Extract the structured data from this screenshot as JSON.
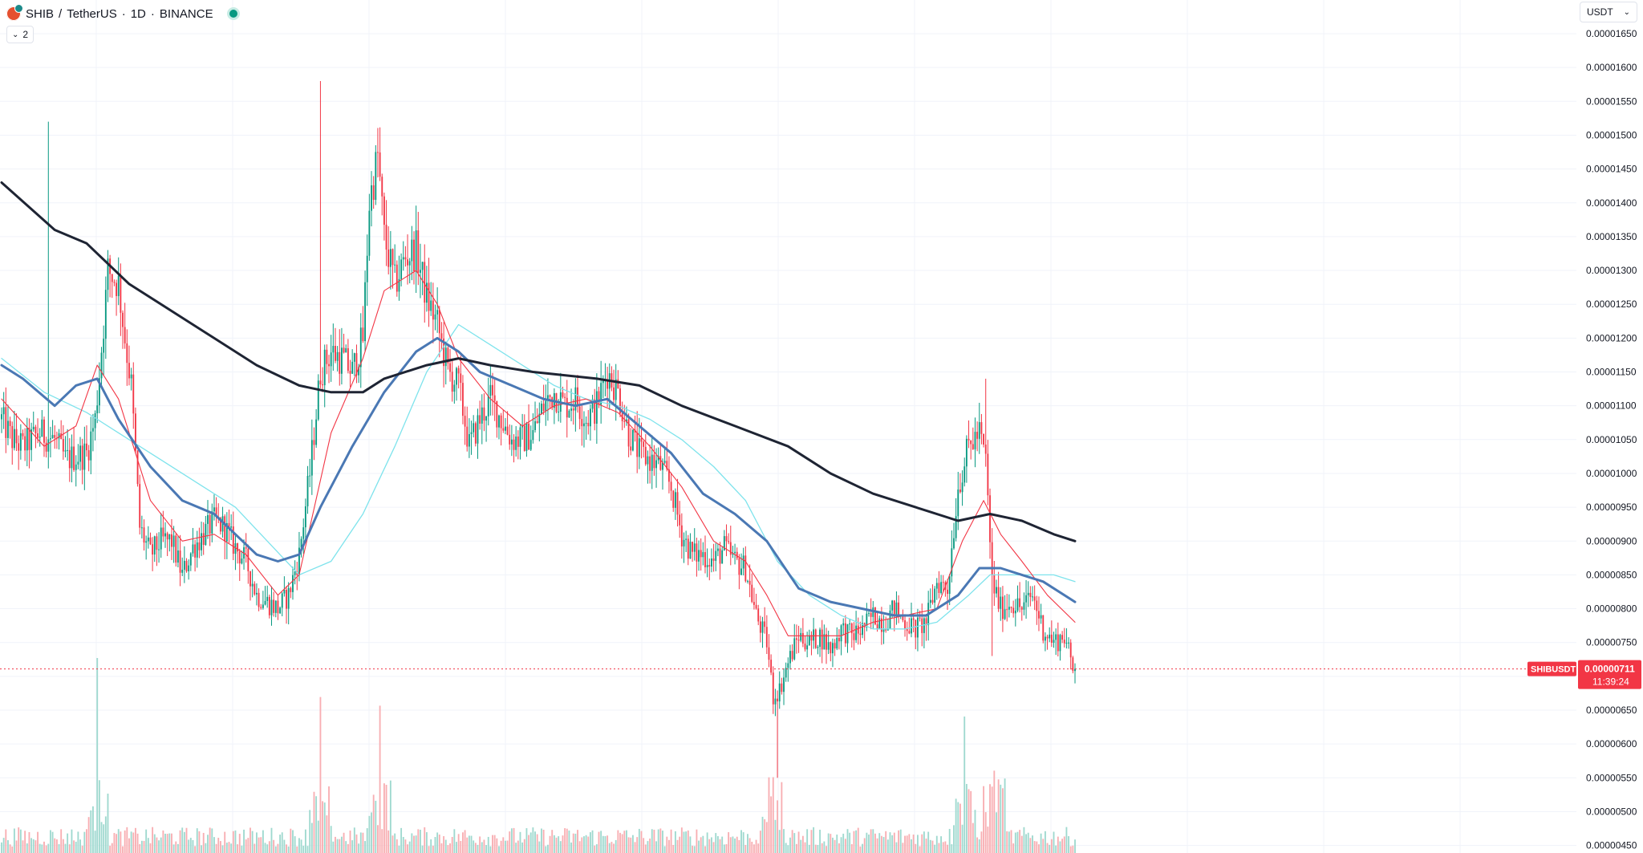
{
  "header": {
    "symbol": "SHIB",
    "separator": "/",
    "quote": "TetherUS",
    "interval_sep": "·",
    "interval": "1D",
    "exchange": "BINANCE",
    "indicators_count": "2"
  },
  "currency_selector": {
    "label": "USDT"
  },
  "price_tag": {
    "symbol": "SHIBUSDT",
    "price": "0.00000711",
    "countdown": "11:39:24",
    "color": "#f23645"
  },
  "colors": {
    "up": "#089981",
    "down": "#f23645",
    "up_volume": "#9fd9cf",
    "down_volume": "#f8aeb2",
    "ma_fast": "#f23645",
    "ma_slow_light": "#7ee3ec",
    "ma_mid": "#4a78b4",
    "ma_long": "#1e2433",
    "grid": "#f0f3fa"
  },
  "chart_data": {
    "type": "candlestick",
    "title": "SHIB / TetherUS · 1D · BINANCE",
    "price_axis_labels": [
      "0.00001650",
      "0.00001600",
      "0.00001550",
      "0.00001500",
      "0.00001450",
      "0.00001400",
      "0.00001350",
      "0.00001300",
      "0.00001250",
      "0.00001200",
      "0.00001150",
      "0.00001100",
      "0.00001050",
      "0.00001000",
      "0.00000950",
      "0.00000900",
      "0.00000850",
      "0.00000800",
      "0.00000750",
      "0.00000700",
      "0.00000650",
      "0.00000600",
      "0.00000550",
      "0.00000500",
      "0.00000450"
    ],
    "ylim": [
      4.5e-06,
      1.668e-05
    ],
    "grid": true,
    "last_price": 7.11e-06,
    "close_path": [
      [
        0,
        1.08e-05
      ],
      [
        5,
        1.05e-05
      ],
      [
        10,
        1.04e-05
      ],
      [
        18,
        1.06e-05
      ],
      [
        25,
        1.05e-05
      ],
      [
        30,
        1.02e-05
      ],
      [
        40,
        1.03e-05
      ],
      [
        44,
        1.08e-05
      ],
      [
        48,
        1.22e-05
      ],
      [
        50,
        1.3e-05
      ],
      [
        55,
        1.28e-05
      ],
      [
        58,
        1.2e-05
      ],
      [
        61,
        1.13e-05
      ],
      [
        65,
        9.2e-06
      ],
      [
        70,
        8.8e-06
      ],
      [
        75,
        9e-06
      ],
      [
        80,
        9e-06
      ],
      [
        85,
        8.5e-06
      ],
      [
        90,
        8.9e-06
      ],
      [
        95,
        9.1e-06
      ],
      [
        100,
        9.3e-06
      ],
      [
        105,
        9.2e-06
      ],
      [
        110,
        8.9e-06
      ],
      [
        115,
        8.7e-06
      ],
      [
        120,
        8.2e-06
      ],
      [
        125,
        8.1e-06
      ],
      [
        130,
        8e-06
      ],
      [
        135,
        8.2e-06
      ],
      [
        140,
        8.8e-06
      ],
      [
        145,
        1e-05
      ],
      [
        150,
        1.15e-05
      ],
      [
        155,
        1.18e-05
      ],
      [
        160,
        1.17e-05
      ],
      [
        165,
        1.15e-05
      ],
      [
        170,
        1.2e-05
      ],
      [
        173,
        1.4e-05
      ],
      [
        177,
        1.47e-05
      ],
      [
        180,
        1.35e-05
      ],
      [
        185,
        1.28e-05
      ],
      [
        190,
        1.32e-05
      ],
      [
        195,
        1.33e-05
      ],
      [
        200,
        1.26e-05
      ],
      [
        205,
        1.22e-05
      ],
      [
        210,
        1.15e-05
      ],
      [
        215,
        1.13e-05
      ],
      [
        220,
        1.04e-05
      ],
      [
        225,
        1.08e-05
      ],
      [
        230,
        1.11e-05
      ],
      [
        235,
        1.08e-05
      ],
      [
        240,
        1.05e-05
      ],
      [
        245,
        1.05e-05
      ],
      [
        250,
        1.06e-05
      ],
      [
        255,
        1.1e-05
      ],
      [
        260,
        1.12e-05
      ],
      [
        265,
        1.1e-05
      ],
      [
        270,
        1.11e-05
      ],
      [
        275,
        1.08e-05
      ],
      [
        280,
        1.1e-05
      ],
      [
        285,
        1.15e-05
      ],
      [
        290,
        1.12e-05
      ],
      [
        295,
        1.06e-05
      ],
      [
        300,
        1.03e-05
      ],
      [
        305,
        1.02e-05
      ],
      [
        310,
        1.01e-05
      ],
      [
        315,
        9.8e-06
      ],
      [
        320,
        9.1e-06
      ],
      [
        325,
        8.8e-06
      ],
      [
        330,
        8.8e-06
      ],
      [
        335,
        8.7e-06
      ],
      [
        340,
        8.9e-06
      ],
      [
        345,
        8.7e-06
      ],
      [
        350,
        8.6e-06
      ],
      [
        355,
        7.9e-06
      ],
      [
        360,
        7.5e-06
      ],
      [
        363,
        6.7e-06
      ],
      [
        366,
        6.8e-06
      ],
      [
        370,
        7.2e-06
      ],
      [
        375,
        7.6e-06
      ],
      [
        380,
        7.5e-06
      ],
      [
        385,
        7.6e-06
      ],
      [
        390,
        7.4e-06
      ],
      [
        395,
        7.7e-06
      ],
      [
        400,
        7.6e-06
      ],
      [
        405,
        7.7e-06
      ],
      [
        410,
        7.9e-06
      ],
      [
        415,
        7.8e-06
      ],
      [
        420,
        8e-06
      ],
      [
        425,
        7.8e-06
      ],
      [
        430,
        7.7e-06
      ],
      [
        435,
        7.8e-06
      ],
      [
        440,
        8.4e-06
      ],
      [
        445,
        8.3e-06
      ],
      [
        450,
        9.8e-06
      ],
      [
        455,
        1.04e-05
      ],
      [
        460,
        1.06e-05
      ],
      [
        463,
        1.02e-05
      ],
      [
        466,
        8.4e-06
      ],
      [
        470,
        8e-06
      ],
      [
        475,
        8.1e-06
      ],
      [
        480,
        8e-06
      ],
      [
        485,
        8.2e-06
      ],
      [
        490,
        7.7e-06
      ],
      [
        495,
        7.5e-06
      ],
      [
        500,
        7.6e-06
      ],
      [
        504,
        7.1e-06
      ]
    ],
    "moving_averages": {
      "ma_long_path": [
        [
          0,
          1.43e-05
        ],
        [
          25,
          1.36e-05
        ],
        [
          40,
          1.34e-05
        ],
        [
          60,
          1.28e-05
        ],
        [
          80,
          1.24e-05
        ],
        [
          100,
          1.2e-05
        ],
        [
          120,
          1.16e-05
        ],
        [
          140,
          1.13e-05
        ],
        [
          155,
          1.12e-05
        ],
        [
          170,
          1.12e-05
        ],
        [
          180,
          1.14e-05
        ],
        [
          200,
          1.16e-05
        ],
        [
          215,
          1.17e-05
        ],
        [
          230,
          1.16e-05
        ],
        [
          250,
          1.15e-05
        ],
        [
          280,
          1.14e-05
        ],
        [
          300,
          1.13e-05
        ],
        [
          320,
          1.1e-05
        ],
        [
          345,
          1.07e-05
        ],
        [
          370,
          1.04e-05
        ],
        [
          390,
          1e-05
        ],
        [
          410,
          9.7e-06
        ],
        [
          430,
          9.5e-06
        ],
        [
          450,
          9.3e-06
        ],
        [
          465,
          9.4e-06
        ],
        [
          480,
          9.3e-06
        ],
        [
          495,
          9.1e-06
        ],
        [
          505,
          9e-06
        ]
      ],
      "ma_mid_path": [
        [
          0,
          1.16e-05
        ],
        [
          10,
          1.14e-05
        ],
        [
          25,
          1.1e-05
        ],
        [
          35,
          1.13e-05
        ],
        [
          45,
          1.14e-05
        ],
        [
          55,
          1.08e-05
        ],
        [
          70,
          1.01e-05
        ],
        [
          85,
          9.6e-06
        ],
        [
          100,
          9.4e-06
        ],
        [
          110,
          9.1e-06
        ],
        [
          120,
          8.8e-06
        ],
        [
          130,
          8.7e-06
        ],
        [
          140,
          8.8e-06
        ],
        [
          150,
          9.5e-06
        ],
        [
          165,
          1.04e-05
        ],
        [
          180,
          1.12e-05
        ],
        [
          195,
          1.18e-05
        ],
        [
          205,
          1.2e-05
        ],
        [
          215,
          1.18e-05
        ],
        [
          225,
          1.15e-05
        ],
        [
          240,
          1.13e-05
        ],
        [
          255,
          1.11e-05
        ],
        [
          270,
          1.1e-05
        ],
        [
          285,
          1.11e-05
        ],
        [
          300,
          1.07e-05
        ],
        [
          315,
          1.03e-05
        ],
        [
          330,
          9.7e-06
        ],
        [
          345,
          9.4e-06
        ],
        [
          360,
          9e-06
        ],
        [
          375,
          8.3e-06
        ],
        [
          390,
          8.1e-06
        ],
        [
          405,
          8e-06
        ],
        [
          420,
          7.9e-06
        ],
        [
          435,
          7.9e-06
        ],
        [
          450,
          8.2e-06
        ],
        [
          460,
          8.6e-06
        ],
        [
          470,
          8.6e-06
        ],
        [
          480,
          8.5e-06
        ],
        [
          490,
          8.4e-06
        ],
        [
          505,
          8.1e-06
        ]
      ],
      "ma_fast_path": [
        [
          0,
          1.11e-05
        ],
        [
          20,
          1.04e-05
        ],
        [
          35,
          1.07e-05
        ],
        [
          45,
          1.16e-05
        ],
        [
          55,
          1.11e-05
        ],
        [
          70,
          9.6e-06
        ],
        [
          85,
          9e-06
        ],
        [
          100,
          9.1e-06
        ],
        [
          115,
          8.8e-06
        ],
        [
          130,
          8.2e-06
        ],
        [
          140,
          8.5e-06
        ],
        [
          155,
          1.06e-05
        ],
        [
          170,
          1.17e-05
        ],
        [
          180,
          1.27e-05
        ],
        [
          195,
          1.3e-05
        ],
        [
          205,
          1.25e-05
        ],
        [
          215,
          1.17e-05
        ],
        [
          230,
          1.11e-05
        ],
        [
          245,
          1.07e-05
        ],
        [
          260,
          1.1e-05
        ],
        [
          275,
          1.11e-05
        ],
        [
          290,
          1.09e-05
        ],
        [
          305,
          1.04e-05
        ],
        [
          320,
          9.8e-06
        ],
        [
          335,
          9e-06
        ],
        [
          350,
          8.7e-06
        ],
        [
          360,
          8.2e-06
        ],
        [
          370,
          7.6e-06
        ],
        [
          380,
          7.6e-06
        ],
        [
          395,
          7.6e-06
        ],
        [
          410,
          7.8e-06
        ],
        [
          425,
          7.9e-06
        ],
        [
          440,
          8e-06
        ],
        [
          452,
          9e-06
        ],
        [
          462,
          9.6e-06
        ],
        [
          470,
          9.1e-06
        ],
        [
          480,
          8.7e-06
        ],
        [
          492,
          8.2e-06
        ],
        [
          505,
          7.8e-06
        ]
      ],
      "ma_slow_light_path": [
        [
          0,
          1.17e-05
        ],
        [
          20,
          1.12e-05
        ],
        [
          40,
          1.09e-05
        ],
        [
          55,
          1.06e-05
        ],
        [
          75,
          1.02e-05
        ],
        [
          95,
          9.8e-06
        ],
        [
          110,
          9.5e-06
        ],
        [
          125,
          9e-06
        ],
        [
          140,
          8.5e-06
        ],
        [
          155,
          8.7e-06
        ],
        [
          170,
          9.4e-06
        ],
        [
          185,
          1.04e-05
        ],
        [
          200,
          1.15e-05
        ],
        [
          215,
          1.22e-05
        ],
        [
          230,
          1.19e-05
        ],
        [
          245,
          1.16e-05
        ],
        [
          260,
          1.13e-05
        ],
        [
          275,
          1.11e-05
        ],
        [
          290,
          1.1e-05
        ],
        [
          305,
          1.08e-05
        ],
        [
          320,
          1.05e-05
        ],
        [
          335,
          1.01e-05
        ],
        [
          350,
          9.6e-06
        ],
        [
          365,
          8.7e-06
        ],
        [
          380,
          8.2e-06
        ],
        [
          395,
          7.9e-06
        ],
        [
          410,
          7.7e-06
        ],
        [
          425,
          7.7e-06
        ],
        [
          440,
          7.8e-06
        ],
        [
          455,
          8.2e-06
        ],
        [
          465,
          8.5e-06
        ],
        [
          480,
          8.5e-06
        ],
        [
          495,
          8.5e-06
        ],
        [
          505,
          8.4e-06
        ]
      ]
    },
    "volume_spikes": [
      [
        45,
        0.9
      ],
      [
        150,
        0.72
      ],
      [
        178,
        0.68
      ],
      [
        363,
        0.35
      ],
      [
        453,
        0.63
      ],
      [
        467,
        0.38
      ]
    ]
  }
}
